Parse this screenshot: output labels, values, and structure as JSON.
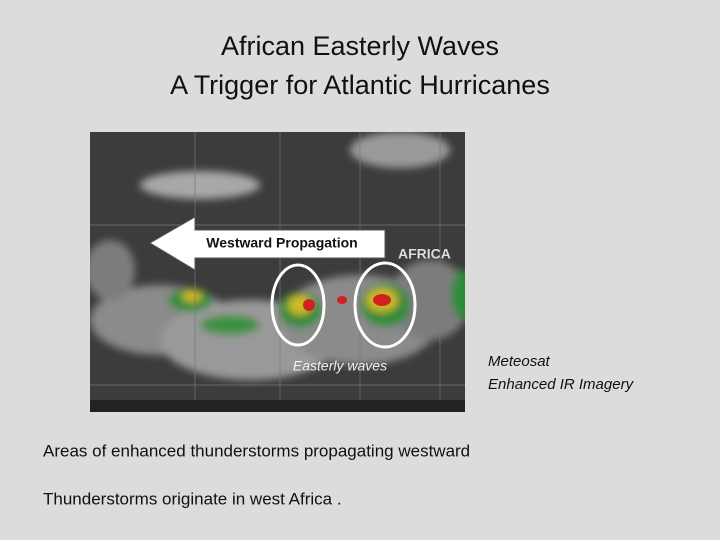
{
  "title": [
    "African Easterly Waves",
    "A Trigger for Atlantic Hurricanes"
  ],
  "image": {
    "arrow_label": "Westward Propagation",
    "region_label": "AFRICA",
    "wave_label": "Easterly waves"
  },
  "image_caption": [
    "Meteosat",
    "Enhanced IR Imagery"
  ],
  "bullets": [
    "Areas of enhanced thunderstorms propagating westward",
    "Thunderstorms originate in west Africa ."
  ]
}
